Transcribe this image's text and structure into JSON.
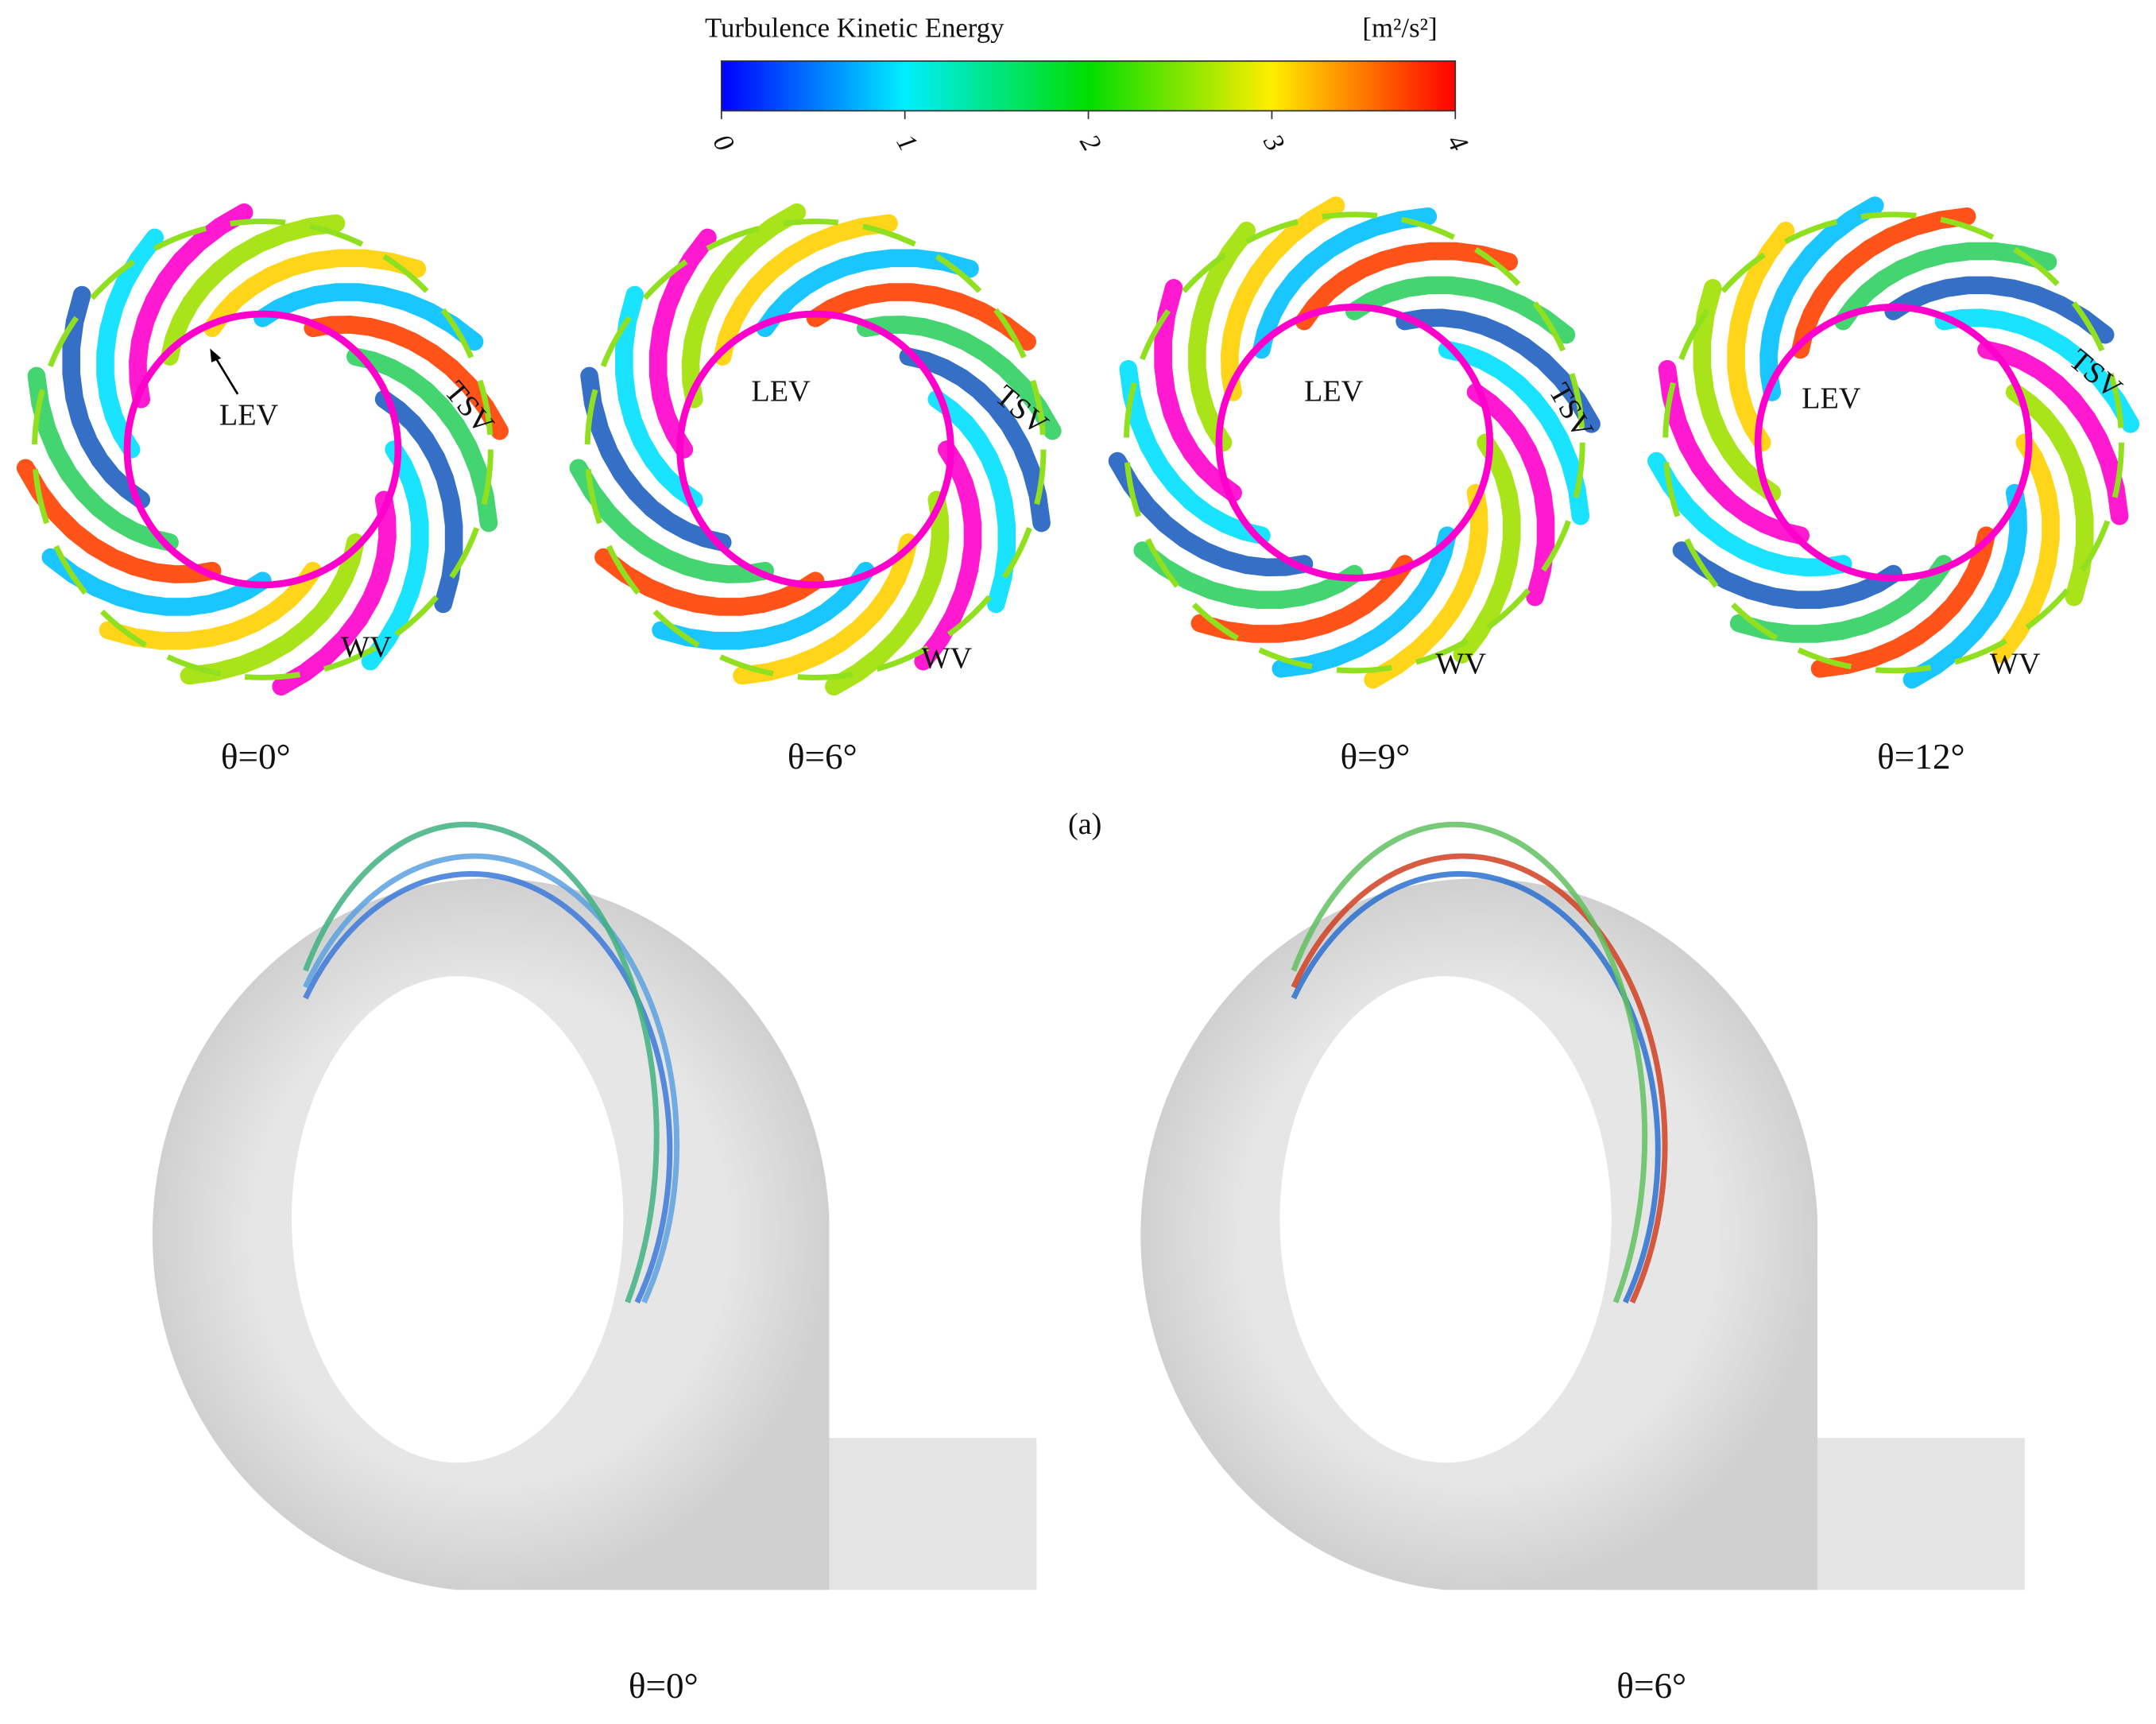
{
  "colorbar": {
    "title": "Turbulence Kinetic Energy",
    "unit": "[m²/s²]",
    "ticks": [
      0,
      1,
      2,
      3,
      4
    ]
  },
  "panel_a": {
    "label": "(a)",
    "views": [
      {
        "caption": "θ=0°",
        "lev": "LEV",
        "tsv": "TSV",
        "wv": "WV"
      },
      {
        "caption": "θ=6°",
        "lev": "LEV",
        "tsv": "TSV",
        "wv": "WV"
      },
      {
        "caption": "θ=9°",
        "lev": "LEV",
        "tsv": "TSV",
        "wv": "WV"
      },
      {
        "caption": "θ=12°",
        "lev": "LEV",
        "tsv": "TSV",
        "wv": "WV"
      }
    ]
  },
  "panel_b": {
    "views": [
      {
        "caption": "θ=0°"
      },
      {
        "caption": "θ=6°"
      }
    ]
  }
}
